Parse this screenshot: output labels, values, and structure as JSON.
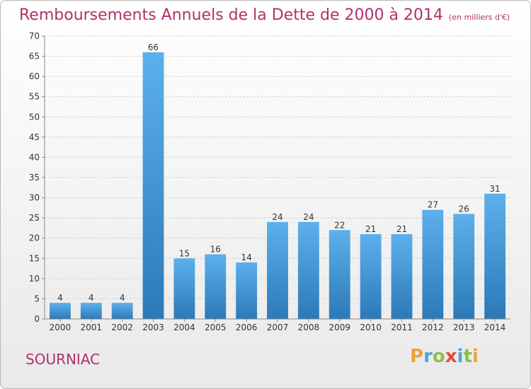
{
  "title": "Remboursements Annuels de la Dette de 2000 à 2014",
  "unit": "(en milliers d'€)",
  "commune": "SOURNIAC",
  "brand": {
    "letters": [
      {
        "ch": "P",
        "color": "#e8a33a"
      },
      {
        "ch": "r",
        "color": "#4fa3dc"
      },
      {
        "ch": "o",
        "color": "#8cc04a"
      },
      {
        "ch": "x",
        "color": "#e84a3a"
      },
      {
        "ch": "i",
        "color": "#4fa3dc"
      },
      {
        "ch": "t",
        "color": "#8cc04a"
      },
      {
        "ch": "i",
        "color": "#e8a33a"
      }
    ]
  },
  "chart_data": {
    "type": "bar",
    "categories": [
      "2000",
      "2001",
      "2002",
      "2003",
      "2004",
      "2005",
      "2006",
      "2007",
      "2008",
      "2009",
      "2010",
      "2011",
      "2012",
      "2013",
      "2014"
    ],
    "values": [
      4,
      4,
      4,
      66,
      15,
      16,
      14,
      24,
      24,
      22,
      21,
      21,
      27,
      26,
      31
    ],
    "ylim": [
      0,
      70
    ],
    "yticks": [
      0,
      5,
      10,
      15,
      20,
      25,
      30,
      35,
      40,
      45,
      50,
      55,
      60,
      65,
      70
    ],
    "grid": true,
    "bar_color": "#3f97d8"
  }
}
